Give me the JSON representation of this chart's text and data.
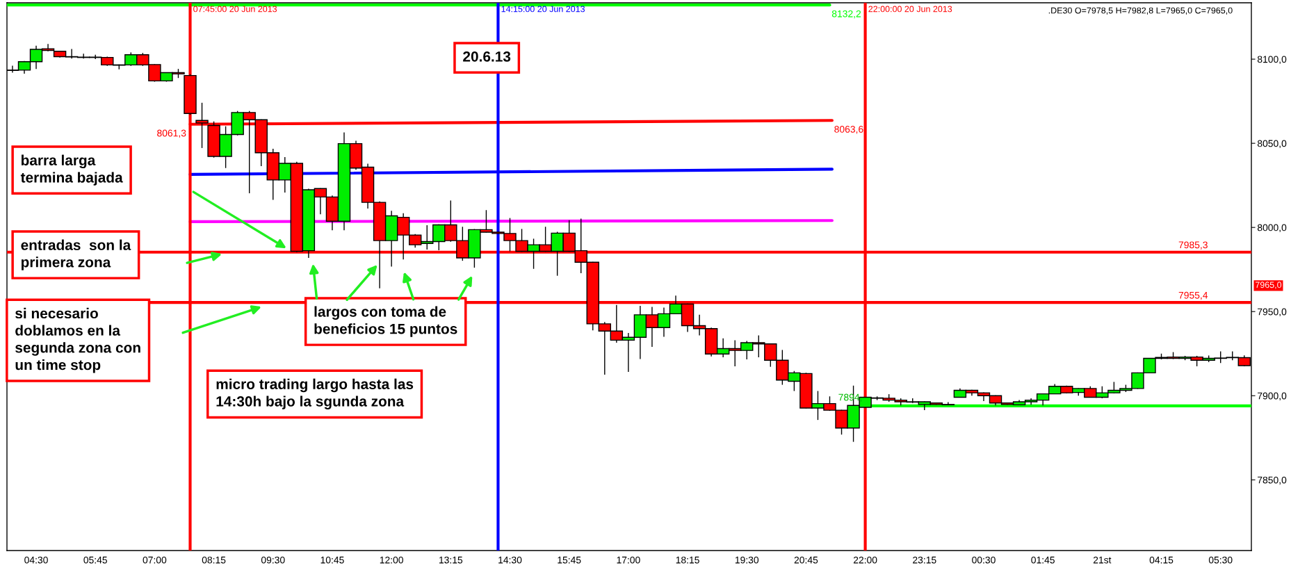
{
  "chart_data": {
    "type": "candlestick",
    "x": [
      "2013-06-20T04:00",
      "2013-06-20T04:15",
      "2013-06-20T04:30",
      "2013-06-20T04:45",
      "2013-06-20T05:00",
      "2013-06-20T05:15",
      "2013-06-20T05:30",
      "2013-06-20T05:45",
      "2013-06-20T06:00",
      "2013-06-20T06:15",
      "2013-06-20T06:30",
      "2013-06-20T06:45",
      "2013-06-20T07:00",
      "2013-06-20T07:15",
      "2013-06-20T07:30",
      "2013-06-20T07:45",
      "2013-06-20T08:00",
      "2013-06-20T08:15",
      "2013-06-20T08:30",
      "2013-06-20T08:45",
      "2013-06-20T09:00",
      "2013-06-20T09:15",
      "2013-06-20T09:30",
      "2013-06-20T09:45",
      "2013-06-20T10:00",
      "2013-06-20T10:15",
      "2013-06-20T10:30",
      "2013-06-20T10:45",
      "2013-06-20T11:00",
      "2013-06-20T11:15",
      "2013-06-20T11:30",
      "2013-06-20T11:45",
      "2013-06-20T12:00",
      "2013-06-20T12:15",
      "2013-06-20T12:30",
      "2013-06-20T12:45",
      "2013-06-20T13:00",
      "2013-06-20T13:15",
      "2013-06-20T13:30",
      "2013-06-20T13:45",
      "2013-06-20T14:00",
      "2013-06-20T14:15",
      "2013-06-20T14:30",
      "2013-06-20T14:45",
      "2013-06-20T15:00",
      "2013-06-20T15:15",
      "2013-06-20T15:30",
      "2013-06-20T15:45",
      "2013-06-20T16:00",
      "2013-06-20T16:15",
      "2013-06-20T16:30",
      "2013-06-20T16:45",
      "2013-06-20T17:00",
      "2013-06-20T17:15",
      "2013-06-20T17:30",
      "2013-06-20T17:45",
      "2013-06-20T18:00",
      "2013-06-20T18:15",
      "2013-06-20T18:30",
      "2013-06-20T18:45",
      "2013-06-20T19:00",
      "2013-06-20T19:15",
      "2013-06-20T19:30",
      "2013-06-20T19:45",
      "2013-06-20T20:00",
      "2013-06-20T20:15",
      "2013-06-20T20:30",
      "2013-06-20T20:45",
      "2013-06-20T21:00",
      "2013-06-20T21:15",
      "2013-06-20T21:30",
      "2013-06-20T21:45",
      "2013-06-20T22:00",
      "2013-06-20T22:15",
      "2013-06-20T22:30",
      "2013-06-20T22:45",
      "2013-06-20T23:00",
      "2013-06-20T23:15",
      "2013-06-20T23:30",
      "2013-06-20T23:45",
      "2013-06-21T00:00",
      "2013-06-21T00:15",
      "2013-06-21T00:30",
      "2013-06-21T00:45",
      "2013-06-21T01:00",
      "2013-06-21T01:15",
      "2013-06-21T01:30",
      "2013-06-21T01:45",
      "2013-06-21T02:00",
      "2013-06-21T02:15",
      "2013-06-21T02:30",
      "2013-06-21T02:45",
      "2013-06-21T03:00",
      "2013-06-21T03:15",
      "2013-06-21T03:30",
      "2013-06-21T03:45",
      "2013-06-21T04:00",
      "2013-06-21T04:15",
      "2013-06-21T04:30",
      "2013-06-21T04:45",
      "2013-06-21T05:00",
      "2013-06-21T05:15",
      "2013-06-21T05:30",
      "2013-06-21T05:45",
      "2013-06-21T06:00"
    ],
    "ohlc": [
      [
        8093.5,
        8096.1,
        8092.0,
        8093.3
      ],
      [
        8093.5,
        8098.9,
        8091.4,
        8098.5
      ],
      [
        8098.5,
        8108.0,
        8094.2,
        8105.8
      ],
      [
        8106.2,
        8109.0,
        8104.7,
        8105.2
      ],
      [
        8104.7,
        8105.0,
        8101.0,
        8101.5
      ],
      [
        8101.5,
        8106.0,
        8100.4,
        8101.3
      ],
      [
        8101.2,
        8103.2,
        8100.4,
        8101.0
      ],
      [
        8101.2,
        8102.6,
        8100.0,
        8101.0
      ],
      [
        8101.0,
        8101.5,
        8096.0,
        8096.6
      ],
      [
        8096.6,
        8096.8,
        8094.0,
        8096.4
      ],
      [
        8096.6,
        8104.0,
        8096.0,
        8102.6
      ],
      [
        8102.6,
        8103.7,
        8096.0,
        8096.6
      ],
      [
        8096.8,
        8097.0,
        8086.6,
        8087.1
      ],
      [
        8087.1,
        8092.2,
        8086.6,
        8092.0
      ],
      [
        8092.0,
        8094.2,
        8088.8,
        8091.2
      ],
      [
        8090.3,
        8091.0,
        8067.0,
        8067.7
      ],
      [
        8063.6,
        8074.1,
        8047.2,
        8062.1
      ],
      [
        8060.6,
        8063.0,
        8041.5,
        8042.2
      ],
      [
        8042.2,
        8060.1,
        8035.3,
        8055.2
      ],
      [
        8055.2,
        8069.2,
        8054.7,
        8068.3
      ],
      [
        8068.3,
        8069.2,
        8020.3,
        8064.0
      ],
      [
        8064.0,
        8064.2,
        8036.4,
        8044.4
      ],
      [
        8044.4,
        8046.8,
        8016.4,
        8028.2
      ],
      [
        8028.2,
        8041.8,
        8020.7,
        8038.1
      ],
      [
        8038.1,
        8039.0,
        7985.3,
        7985.8
      ],
      [
        7986.2,
        8023.0,
        7981.9,
        8022.4
      ],
      [
        8023.1,
        8023.3,
        8007.8,
        8018.1
      ],
      [
        8018.1,
        8019.0,
        7998.3,
        8003.7
      ],
      [
        8003.7,
        8056.5,
        7998.3,
        8049.8
      ],
      [
        8049.8,
        8051.5,
        8034.3,
        8035.3
      ],
      [
        8035.8,
        8037.9,
        8011.2,
        8014.9
      ],
      [
        8014.9,
        8015.5,
        7963.8,
        7992.2
      ],
      [
        7992.2,
        8009.9,
        7976.7,
        8006.9
      ],
      [
        8006.0,
        8008.4,
        7981.0,
        7995.5
      ],
      [
        7995.5,
        7996.0,
        7988.0,
        7989.7
      ],
      [
        7990.5,
        8001.3,
        7986.9,
        7991.6
      ],
      [
        7991.6,
        8001.8,
        7986.4,
        8001.5
      ],
      [
        8001.5,
        8016.0,
        7991.5,
        7992.2
      ],
      [
        7992.2,
        8000.4,
        7980.2,
        7981.9
      ],
      [
        7981.9,
        7999.0,
        7976.1,
        7998.7
      ],
      [
        7998.7,
        8010.3,
        7997.0,
        7997.2
      ],
      [
        7997.2,
        7997.4,
        7996.2,
        7996.4
      ],
      [
        7996.4,
        8005.6,
        7985.8,
        7992.2
      ],
      [
        7992.2,
        7999.1,
        7985.5,
        7985.8
      ],
      [
        7985.8,
        7993.3,
        7975.4,
        7989.7
      ],
      [
        7989.7,
        8000.4,
        7985.5,
        7985.8
      ],
      [
        7985.8,
        7997.4,
        7971.3,
        7996.6
      ],
      [
        7996.6,
        8004.3,
        7985.5,
        7985.8
      ],
      [
        7986.2,
        8005.2,
        7972.8,
        7979.3
      ],
      [
        7979.3,
        7979.5,
        7938.8,
        7942.7
      ],
      [
        7942.7,
        7943.8,
        7912.5,
        7938.4
      ],
      [
        7938.4,
        7953.9,
        7931.5,
        7933.0
      ],
      [
        7933.0,
        7937.3,
        7914.2,
        7934.7
      ],
      [
        7934.7,
        7953.4,
        7921.8,
        7948.1
      ],
      [
        7948.1,
        7952.8,
        7929.0,
        7940.5
      ],
      [
        7940.5,
        7952.4,
        7935.0,
        7948.7
      ],
      [
        7948.7,
        7959.5,
        7948.5,
        7954.5
      ],
      [
        7954.5,
        7954.7,
        7937.9,
        7941.6
      ],
      [
        7941.6,
        7948.1,
        7935.8,
        7939.9
      ],
      [
        7939.9,
        7940.5,
        7923.3,
        7924.8
      ],
      [
        7924.8,
        7934.1,
        7922.8,
        7928.0
      ],
      [
        7928.0,
        7933.0,
        7917.5,
        7926.9
      ],
      [
        7926.9,
        7932.5,
        7921.6,
        7931.5
      ],
      [
        7931.5,
        7935.8,
        7922.8,
        7930.8
      ],
      [
        7930.8,
        7931.0,
        7917.2,
        7921.1
      ],
      [
        7921.1,
        7927.2,
        7906.5,
        7909.3
      ],
      [
        7908.6,
        7914.7,
        7902.8,
        7913.6
      ],
      [
        7913.2,
        7913.6,
        7892.5,
        7892.7
      ],
      [
        7892.7,
        7902.8,
        7885.6,
        7895.3
      ],
      [
        7895.3,
        7899.6,
        7891.0,
        7891.4
      ],
      [
        7891.4,
        7891.6,
        7876.9,
        7880.8
      ],
      [
        7880.8,
        7906.0,
        7872.6,
        7894.2
      ],
      [
        7893.1,
        7899.3,
        7892.9,
        7899.1
      ],
      [
        7898.7,
        7899.6,
        7897.4,
        7898.5
      ],
      [
        7898.5,
        7900.9,
        7896.4,
        7897.4
      ],
      [
        7897.4,
        7898.5,
        7894.2,
        7896.4
      ],
      [
        7896.4,
        7898.5,
        7895.7,
        7896.2
      ],
      [
        7894.8,
        7896.6,
        7891.4,
        7896.4
      ],
      [
        7895.7,
        7896.0,
        7894.6,
        7894.8
      ],
      [
        7894.8,
        7896.2,
        7894.4,
        7894.6
      ],
      [
        7899.1,
        7904.3,
        7898.9,
        7903.2
      ],
      [
        7903.2,
        7903.5,
        7900.0,
        7901.7
      ],
      [
        7901.7,
        7902.0,
        7896.8,
        7900.0
      ],
      [
        7900.0,
        7900.2,
        7894.2,
        7895.7
      ],
      [
        7895.7,
        7896.0,
        7894.6,
        7894.8
      ],
      [
        7894.6,
        7897.4,
        7894.4,
        7896.4
      ],
      [
        7896.4,
        7898.5,
        7894.6,
        7897.4
      ],
      [
        7897.4,
        7901.3,
        7894.2,
        7901.1
      ],
      [
        7901.1,
        7906.9,
        7900.9,
        7905.6
      ],
      [
        7905.6,
        7906.0,
        7901.5,
        7901.7
      ],
      [
        7901.9,
        7904.5,
        7900.0,
        7904.3
      ],
      [
        7904.3,
        7905.6,
        7898.9,
        7899.1
      ],
      [
        7899.1,
        7905.6,
        7898.5,
        7901.7
      ],
      [
        7901.7,
        7908.2,
        7901.5,
        7903.2
      ],
      [
        7903.2,
        7906.5,
        7902.2,
        7904.3
      ],
      [
        7904.3,
        7913.8,
        7904.1,
        7913.6
      ],
      [
        7913.6,
        7922.4,
        7913.4,
        7922.2
      ],
      [
        7922.2,
        7925.0,
        7921.6,
        7922.8
      ],
      [
        7923.0,
        7925.9,
        7921.8,
        7922.2
      ],
      [
        7922.2,
        7923.7,
        7921.1,
        7923.0
      ],
      [
        7923.0,
        7923.7,
        7917.5,
        7921.1
      ],
      [
        7921.1,
        7923.9,
        7920.0,
        7922.2
      ],
      [
        7922.4,
        7926.3,
        7919.4,
        7922.2
      ],
      [
        7922.8,
        7926.3,
        7921.1,
        7922.6
      ],
      [
        7922.6,
        7924.0,
        7917.6,
        7917.9
      ]
    ],
    "series": [
      {
        "type": "line",
        "color": "#00ff00",
        "x": [
          "2013-06-20T03:53",
          "2013-06-20T21:15"
        ],
        "values": [
          8132.2,
          8132.2
        ]
      },
      {
        "type": "line",
        "color": "#ff0000",
        "x": [
          "2013-06-20T07:45",
          "2013-06-20T21:18"
        ],
        "values": [
          8061.3,
          8063.6
        ]
      },
      {
        "type": "line",
        "color": "#0000ff",
        "x": [
          "2013-06-20T07:45",
          "2013-06-20T21:18"
        ],
        "values": [
          8031.5,
          8034.6
        ]
      },
      {
        "type": "line",
        "color": "#ff00ff",
        "x": [
          "2013-06-20T07:45",
          "2013-06-20T21:18"
        ],
        "values": [
          8003.4,
          8004.1
        ]
      },
      {
        "type": "line",
        "color": "#00ff00",
        "x": [
          "2013-06-20T22:00",
          "2013-06-21T06:09"
        ],
        "values": [
          7894.0,
          7894.0
        ]
      }
    ],
    "ref_lines": [
      {
        "axis": "y",
        "value": 7985.3,
        "label": "7985,3",
        "color": "#ff0000"
      },
      {
        "axis": "y",
        "value": 7955.4,
        "label": "7955,4",
        "color": "#ff0000"
      },
      {
        "axis": "x",
        "value": "2013-06-20T07:45",
        "label": "07:45:00 20 Jun 2013",
        "color": "#ff0000"
      },
      {
        "axis": "x",
        "value": "2013-06-20T14:15",
        "label": "14:15:00 20 Jun 2013",
        "color": "#0000ff"
      },
      {
        "axis": "x",
        "value": "2013-06-20T22:00",
        "label": "22:00:00 20 Jun 2013",
        "color": "#ff0000"
      }
    ],
    "annotations": [
      ".DE30 O=7978,5 H=7982,8 L=7965,0 C=7965,0",
      "20.6.13",
      "barra larga\ntermina bajada",
      "entradas  son la\nprimera zona",
      "si necesario\ndoblamos en la\nsegunda zona con\nun time stop",
      "largos con toma de\nbeneficios 15 puntos",
      "micro trading largo hasta las\n14:30h bajo la sgunda zona",
      "7965,0",
      {
        "text": "8061,3",
        "x": "2013-06-20T07:45",
        "y": 8061.3
      },
      {
        "text": "8063,6",
        "x": "2013-06-20T21:18",
        "y": 8063.6
      },
      {
        "text": "8132,2",
        "x": "2013-06-20T21:15",
        "y": 8132.2
      },
      {
        "text": "7894,",
        "x": "2013-06-20T22:00",
        "y": 7894.0
      }
    ],
    "xlim": [
      "2013-06-20T03:53",
      "2013-06-21T06:09"
    ],
    "ylim": [
      7808,
      8133.5
    ],
    "xticks": [
      {
        "value": "2013-06-20T04:30",
        "label": "04:30"
      },
      {
        "value": "2013-06-20T05:45",
        "label": "05:45"
      },
      {
        "value": "2013-06-20T07:00",
        "label": "07:00"
      },
      {
        "value": "2013-06-20T08:15",
        "label": "08:15"
      },
      {
        "value": "2013-06-20T09:30",
        "label": "09:30"
      },
      {
        "value": "2013-06-20T10:45",
        "label": "10:45"
      },
      {
        "value": "2013-06-20T12:00",
        "label": "12:00"
      },
      {
        "value": "2013-06-20T13:15",
        "label": "13:15"
      },
      {
        "value": "2013-06-20T14:30",
        "label": "14:30"
      },
      {
        "value": "2013-06-20T15:45",
        "label": "15:45"
      },
      {
        "value": "2013-06-20T17:00",
        "label": "17:00"
      },
      {
        "value": "2013-06-20T18:15",
        "label": "18:15"
      },
      {
        "value": "2013-06-20T19:30",
        "label": "19:30"
      },
      {
        "value": "2013-06-20T20:45",
        "label": "20:45"
      },
      {
        "value": "2013-06-20T22:00",
        "label": "22:00"
      },
      {
        "value": "2013-06-20T23:15",
        "label": "23:15"
      },
      {
        "value": "2013-06-21T00:30",
        "label": "00:30"
      },
      {
        "value": "2013-06-21T01:45",
        "label": "01:45"
      },
      {
        "value": "2013-06-21T03:00",
        "label": "21st"
      },
      {
        "value": "2013-06-21T04:15",
        "label": "04:15"
      },
      {
        "value": "2013-06-21T05:30",
        "label": "05:30"
      }
    ],
    "yticks": [
      {
        "value": 7850,
        "label": "7850,0"
      },
      {
        "value": 7900,
        "label": "7900,0"
      },
      {
        "value": 7950,
        "label": "7950,0"
      },
      {
        "value": 8000,
        "label": "8000,0"
      },
      {
        "value": 8050,
        "label": "8050,0"
      },
      {
        "value": 8100,
        "label": "8100,0"
      }
    ],
    "grid": false
  }
}
